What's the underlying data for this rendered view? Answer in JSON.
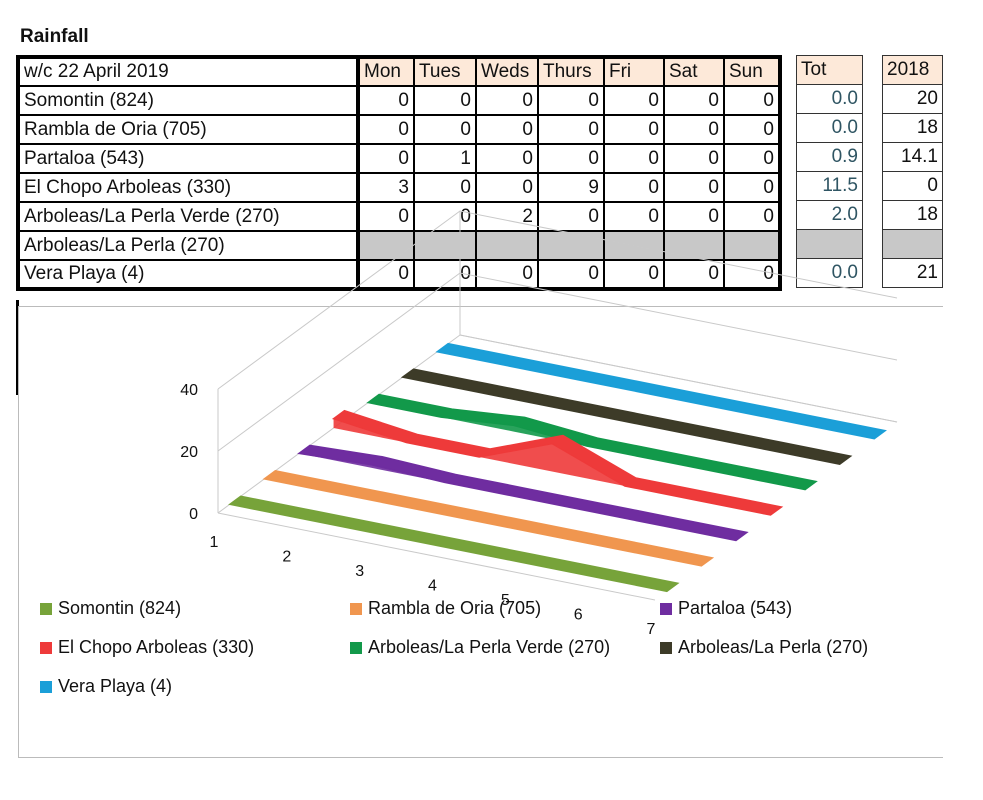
{
  "title": "Rainfall",
  "table": {
    "week_label": "w/c 22 April 2019",
    "days": [
      "Mon",
      "Tues",
      "Weds",
      "Thurs",
      "Fri",
      "Sat",
      "Sun"
    ],
    "tot_header": "Tot",
    "year_header": "2018",
    "rows": [
      {
        "name": "Somontin (824)",
        "values": [
          "0",
          "0",
          "0",
          "0",
          "0",
          "0",
          "0"
        ],
        "tot": "0.0",
        "y2018": "20"
      },
      {
        "name": "Rambla de Oria (705)",
        "values": [
          "0",
          "0",
          "0",
          "0",
          "0",
          "0",
          "0"
        ],
        "tot": "0.0",
        "y2018": "18"
      },
      {
        "name": "Partaloa (543)",
        "values": [
          "0",
          "1",
          "0",
          "0",
          "0",
          "0",
          "0"
        ],
        "tot": "0.9",
        "y2018": "14.1"
      },
      {
        "name": "El Chopo Arboleas (330)",
        "values": [
          "3",
          "0",
          "0",
          "9",
          "0",
          "0",
          "0"
        ],
        "tot": "11.5",
        "y2018": "0"
      },
      {
        "name": "Arboleas/La Perla Verde (270)",
        "values": [
          "0",
          "0",
          "2",
          "0",
          "0",
          "0",
          "0"
        ],
        "tot": "2.0",
        "y2018": "18"
      },
      {
        "name": "Arboleas/La Perla (270)",
        "values": [
          "",
          "",
          "",
          "",
          "",
          "",
          ""
        ],
        "tot": "",
        "y2018": ""
      },
      {
        "name": "Vera Playa (4)",
        "values": [
          "0",
          "0",
          "0",
          "0",
          "0",
          "0",
          "0"
        ],
        "tot": "0.0",
        "y2018": "21"
      }
    ]
  },
  "chart_data": {
    "type": "area",
    "subtype": "3d-area",
    "categories": [
      "1",
      "2",
      "3",
      "4",
      "5",
      "6",
      "7"
    ],
    "ylim": [
      0,
      40
    ],
    "yticks": [
      "0",
      "20",
      "40"
    ],
    "grid": true,
    "legend_position": "bottom",
    "series": [
      {
        "name": "Somontin (824)",
        "color": "#77a33a",
        "values": [
          0,
          0,
          0,
          0,
          0,
          0,
          0
        ]
      },
      {
        "name": "Rambla de Oria (705)",
        "color": "#f0964f",
        "values": [
          0,
          0,
          0,
          0,
          0,
          0,
          0
        ]
      },
      {
        "name": "Partaloa (543)",
        "color": "#6f2da0",
        "values": [
          0,
          1,
          0,
          0,
          0,
          0,
          0
        ]
      },
      {
        "name": "El Chopo Arboleas (330)",
        "color": "#ee3a3a",
        "values": [
          3,
          0,
          0,
          9,
          0,
          0,
          0
        ]
      },
      {
        "name": "Arboleas/La Perla Verde (270)",
        "color": "#12994a",
        "values": [
          0,
          0,
          2,
          0,
          0,
          0,
          0
        ]
      },
      {
        "name": "Arboleas/La Perla (270)",
        "color": "#3d3b28",
        "values": [
          0,
          0,
          0,
          0,
          0,
          0,
          0
        ]
      },
      {
        "name": "Vera Playa (4)",
        "color": "#1b9fd8",
        "values": [
          0,
          0,
          0,
          0,
          0,
          0,
          0
        ]
      }
    ]
  }
}
